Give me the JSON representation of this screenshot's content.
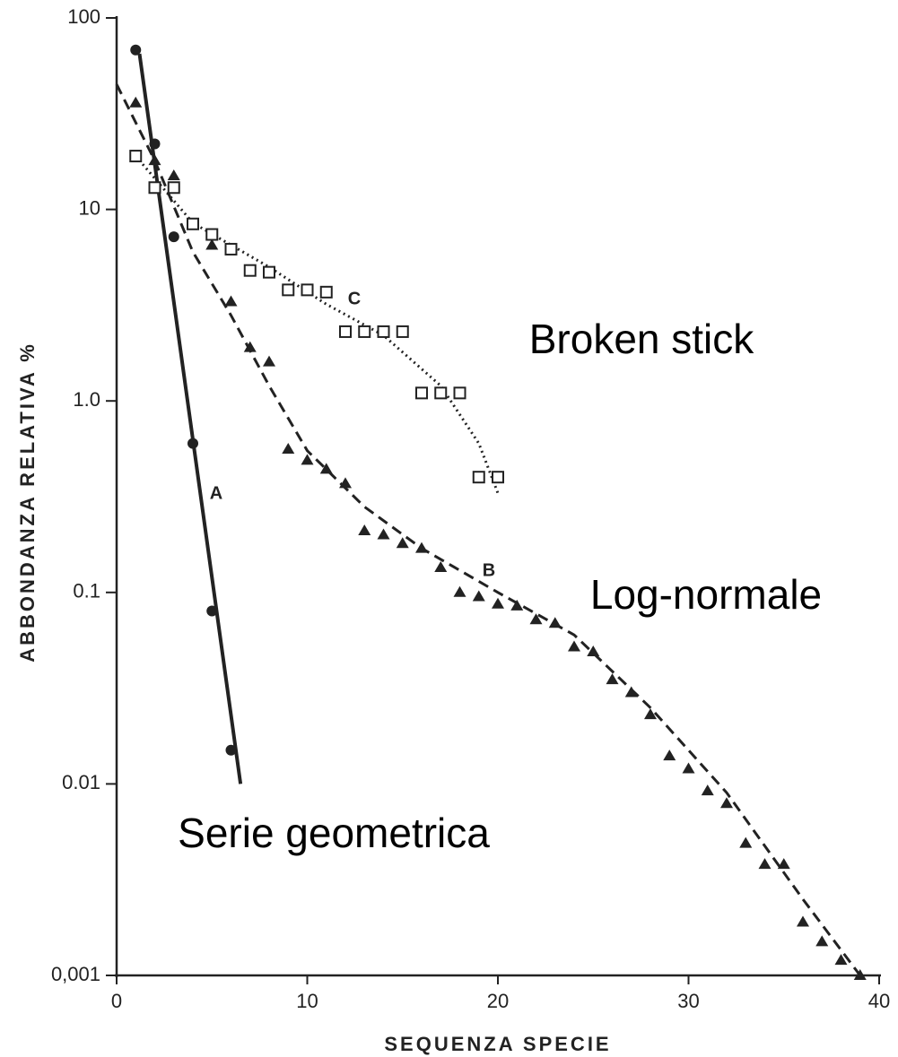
{
  "chart_data": {
    "type": "scatter",
    "log_y": true,
    "xlabel": "SEQUENZA SPECIE",
    "ylabel": "ABBONDANZA RELATIVA %",
    "xlim": [
      0,
      40
    ],
    "ylim": [
      0.001,
      100
    ],
    "xticks": [
      0,
      10,
      20,
      30,
      40
    ],
    "yticks": [
      100,
      10,
      {
        "value": 1,
        "label": "1.0"
      },
      0.1,
      0.01,
      {
        "value": 0.001,
        "label": "0,001"
      }
    ],
    "series": [
      {
        "name": "Serie geometrica",
        "label": "A",
        "marker": "circle",
        "line_style": "solid",
        "color": "#222222",
        "x": [
          1,
          2,
          3,
          4,
          5,
          6
        ],
        "values": [
          68,
          22,
          7.2,
          0.6,
          0.08,
          0.015
        ],
        "fit": {
          "x": [
            1.2,
            6.5
          ],
          "values": [
            65,
            0.01
          ]
        }
      },
      {
        "name": "Log-normale",
        "label": "B",
        "marker": "triangle",
        "line_style": "dashed",
        "color": "#222222",
        "x": [
          1,
          2,
          3,
          5,
          6,
          7,
          8,
          9,
          10,
          11,
          12,
          13,
          14,
          15,
          16,
          17,
          18,
          19,
          20,
          21,
          22,
          23,
          24,
          25,
          26,
          27,
          28,
          29,
          30,
          31,
          32,
          33,
          34,
          35,
          36,
          37,
          38,
          39
        ],
        "values": [
          36,
          18,
          15,
          6.5,
          3.3,
          1.9,
          1.6,
          0.56,
          0.49,
          0.44,
          0.37,
          0.21,
          0.2,
          0.18,
          0.17,
          0.135,
          0.1,
          0.095,
          0.087,
          0.085,
          0.072,
          0.069,
          0.052,
          0.049,
          0.035,
          0.03,
          0.023,
          0.014,
          0.012,
          0.0092,
          0.0079,
          0.0049,
          0.0038,
          0.0038,
          0.0019,
          0.0015,
          0.0012,
          0.001
        ],
        "fit": {
          "x": [
            0,
            2,
            4,
            6,
            8,
            10,
            13,
            16,
            20,
            24,
            28,
            32,
            36,
            39
          ],
          "values": [
            45,
            18,
            6,
            2.8,
            1.2,
            0.55,
            0.28,
            0.17,
            0.1,
            0.06,
            0.025,
            0.009,
            0.0025,
            0.001
          ]
        }
      },
      {
        "name": "Broken stick",
        "label": "C",
        "marker": "square",
        "line_style": "dotted",
        "color": "#222222",
        "x": [
          1,
          2,
          3,
          4,
          5,
          6,
          7,
          8,
          9,
          10,
          11,
          12,
          13,
          14,
          15,
          16,
          17,
          18,
          19,
          20
        ],
        "values": [
          19,
          13,
          13,
          8.4,
          7.4,
          6.2,
          4.8,
          4.7,
          3.8,
          3.8,
          3.7,
          2.3,
          2.3,
          2.3,
          2.3,
          1.1,
          1.1,
          1.1,
          0.4,
          0.4
        ],
        "fit": {
          "x": [
            1,
            4,
            8,
            11,
            14,
            17,
            19,
            20
          ],
          "values": [
            19,
            8.5,
            5,
            3.2,
            2.2,
            1.2,
            0.6,
            0.33
          ]
        }
      }
    ]
  }
}
